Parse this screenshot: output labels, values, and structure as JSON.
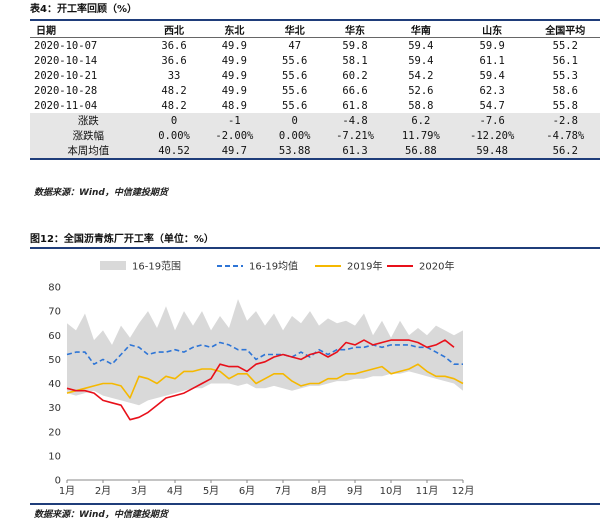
{
  "table": {
    "caption": "表4：开工率回顾（%）",
    "headers": [
      "日期",
      "西北",
      "东北",
      "华北",
      "华东",
      "华南",
      "山东",
      "全国平均"
    ],
    "rows": [
      [
        "2020-10-07",
        "36.6",
        "49.9",
        "47",
        "59.8",
        "59.4",
        "59.9",
        "55.2"
      ],
      [
        "2020-10-14",
        "36.6",
        "49.9",
        "55.6",
        "58.1",
        "59.4",
        "61.1",
        "56.1"
      ],
      [
        "2020-10-21",
        "33",
        "49.9",
        "55.6",
        "60.2",
        "54.2",
        "59.4",
        "55.3"
      ],
      [
        "2020-10-28",
        "48.2",
        "49.9",
        "55.6",
        "66.6",
        "52.6",
        "62.3",
        "58.6"
      ],
      [
        "2020-11-04",
        "48.2",
        "48.9",
        "55.6",
        "61.8",
        "58.8",
        "54.7",
        "55.8"
      ]
    ],
    "summary_rows": [
      [
        "涨跌",
        "0",
        "-1",
        "0",
        "-4.8",
        "6.2",
        "-7.6",
        "-2.8"
      ],
      [
        "涨跌幅",
        "0.00%",
        "-2.00%",
        "0.00%",
        "-7.21%",
        "11.79%",
        "-12.20%",
        "-4.78%"
      ],
      [
        "本周均值",
        "40.52",
        "49.7",
        "53.88",
        "61.3",
        "56.88",
        "59.48",
        "56.2"
      ]
    ],
    "source": "数据来源：Wind，中信建投期货"
  },
  "figure": {
    "caption": "图12：全国沥青炼厂开工率（单位：%）",
    "source": "数据来源：Wind，中信建投期货"
  },
  "chart_data": {
    "type": "line",
    "ylim": [
      0,
      80
    ],
    "yticks": [
      0,
      10,
      20,
      30,
      40,
      50,
      60,
      70,
      80
    ],
    "x_tick_labels": [
      "1月",
      "2月",
      "3月",
      "4月",
      "5月",
      "6月",
      "7月",
      "8月",
      "9月",
      "10月",
      "11月",
      "12月"
    ],
    "x_range": [
      1,
      12
    ],
    "colors": {
      "band": "#d9d9d9",
      "mean": "#2e75d6",
      "y2019": "#f5b800",
      "y2020": "#e8101a",
      "axis": "#888888"
    },
    "range_band": {
      "name": "16-19范围",
      "x": [
        1.0,
        1.25,
        1.5,
        1.75,
        2.0,
        2.25,
        2.5,
        2.75,
        3.0,
        3.25,
        3.5,
        3.75,
        4.0,
        4.25,
        4.5,
        4.75,
        5.0,
        5.25,
        5.5,
        5.75,
        6.0,
        6.25,
        6.5,
        6.75,
        7.0,
        7.25,
        7.5,
        7.75,
        8.0,
        8.25,
        8.5,
        8.75,
        9.0,
        9.25,
        9.5,
        9.75,
        10.0,
        10.25,
        10.5,
        10.75,
        11.0,
        11.25,
        11.5,
        11.75,
        12.0
      ],
      "upper": [
        65,
        62,
        69,
        58,
        62,
        56,
        64,
        59,
        65,
        70,
        63,
        72,
        62,
        70,
        64,
        70,
        62,
        68,
        63,
        75,
        66,
        70,
        64,
        69,
        62,
        68,
        65,
        70,
        64,
        67,
        65,
        66,
        64,
        69,
        60,
        66,
        59,
        66,
        60,
        63,
        60,
        64,
        62,
        60,
        62
      ],
      "lower": [
        36,
        35,
        36,
        37,
        35,
        34,
        33,
        32,
        31,
        33,
        34,
        35,
        36,
        37,
        38,
        38,
        40,
        40,
        40,
        39,
        40,
        38,
        38,
        39,
        38,
        37,
        38,
        39,
        39,
        40,
        41,
        41,
        42,
        42,
        43,
        43,
        44,
        44,
        45,
        44,
        43,
        42,
        41,
        40,
        37
      ]
    },
    "series": [
      {
        "name": "16-19均值",
        "x": [
          1.0,
          1.25,
          1.5,
          1.75,
          2.0,
          2.25,
          2.5,
          2.75,
          3.0,
          3.25,
          3.5,
          3.75,
          4.0,
          4.25,
          4.5,
          4.75,
          5.0,
          5.25,
          5.5,
          5.75,
          6.0,
          6.25,
          6.5,
          6.75,
          7.0,
          7.25,
          7.5,
          7.75,
          8.0,
          8.25,
          8.5,
          8.75,
          9.0,
          9.25,
          9.5,
          9.75,
          10.0,
          10.25,
          10.5,
          10.75,
          11.0,
          11.25,
          11.5,
          11.75,
          12.0
        ],
        "y": [
          52,
          53,
          53,
          48,
          50,
          48,
          52,
          56,
          55,
          52,
          53,
          53,
          54,
          53,
          55,
          56,
          55,
          57,
          56,
          54,
          54,
          50,
          52,
          52,
          52,
          51,
          53,
          51,
          54,
          52,
          54,
          54,
          55,
          55,
          56,
          55,
          56,
          56,
          56,
          55,
          55,
          53,
          51,
          48,
          48
        ]
      },
      {
        "name": "2019年",
        "x": [
          1.0,
          1.25,
          1.5,
          1.75,
          2.0,
          2.25,
          2.5,
          2.75,
          3.0,
          3.25,
          3.5,
          3.75,
          4.0,
          4.25,
          4.5,
          4.75,
          5.0,
          5.25,
          5.5,
          5.75,
          6.0,
          6.25,
          6.5,
          6.75,
          7.0,
          7.25,
          7.5,
          7.75,
          8.0,
          8.25,
          8.5,
          8.75,
          9.0,
          9.25,
          9.5,
          9.75,
          10.0,
          10.25,
          10.5,
          10.75,
          11.0,
          11.25,
          11.5,
          11.75,
          12.0
        ],
        "y": [
          36,
          37,
          38,
          39,
          40,
          40,
          39,
          34,
          43,
          42,
          40,
          43,
          42,
          45,
          45,
          46,
          46,
          45,
          42,
          44,
          44,
          40,
          42,
          44,
          44,
          41,
          39,
          40,
          40,
          42,
          42,
          44,
          44,
          45,
          46,
          47,
          44,
          45,
          46,
          48,
          45,
          43,
          43,
          42,
          40
        ]
      },
      {
        "name": "2020年",
        "x": [
          1.0,
          1.25,
          1.5,
          1.75,
          2.0,
          2.25,
          2.5,
          2.75,
          3.0,
          3.25,
          3.5,
          3.75,
          4.0,
          4.25,
          4.5,
          4.75,
          5.0,
          5.25,
          5.5,
          5.75,
          6.0,
          6.25,
          6.5,
          6.75,
          7.0,
          7.25,
          7.5,
          7.75,
          8.0,
          8.25,
          8.5,
          8.75,
          9.0,
          9.25,
          9.5,
          9.75,
          10.0,
          10.25,
          10.5,
          10.75,
          11.0,
          11.25,
          11.5,
          11.75
        ],
        "y": [
          38,
          37,
          37,
          36,
          33,
          32,
          31,
          25,
          26,
          28,
          31,
          34,
          35,
          36,
          38,
          40,
          42,
          48,
          47,
          47,
          45,
          48,
          49,
          51,
          52,
          51,
          50,
          52,
          53,
          51,
          53,
          57,
          56,
          58,
          56,
          57,
          58,
          58,
          58,
          57,
          55,
          56,
          58,
          55
        ]
      }
    ]
  }
}
